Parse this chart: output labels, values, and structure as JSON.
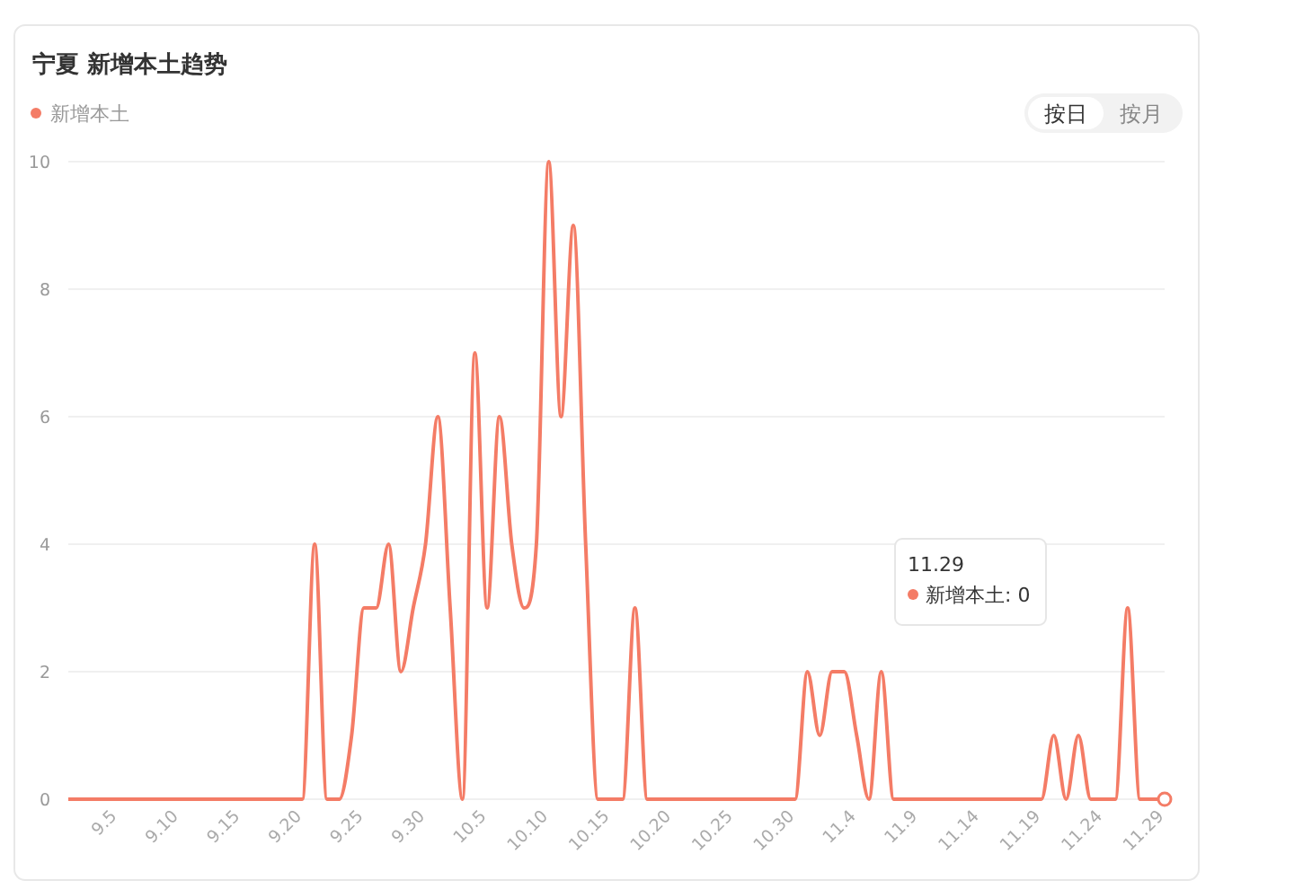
{
  "chart_data": {
    "type": "line",
    "title": "宁夏 新增本土趋势",
    "legend": "top left",
    "grid": "y",
    "marker": "none",
    "ylim": [
      0,
      10
    ],
    "yticks": [
      0,
      2,
      4,
      6,
      8,
      10
    ],
    "categories": [
      null,
      null,
      null,
      null,
      "9.5",
      null,
      null,
      null,
      null,
      "9.10",
      null,
      null,
      null,
      null,
      "9.15",
      null,
      null,
      null,
      null,
      "9.20",
      null,
      null,
      null,
      null,
      "9.25",
      null,
      null,
      null,
      null,
      "9.30",
      null,
      null,
      null,
      null,
      "10.5",
      null,
      null,
      null,
      null,
      "10.10",
      null,
      null,
      null,
      null,
      "10.15",
      null,
      null,
      null,
      null,
      "10.20",
      null,
      null,
      null,
      null,
      "10.25",
      null,
      null,
      null,
      null,
      "10.30",
      null,
      null,
      null,
      null,
      "11.4",
      null,
      null,
      null,
      null,
      "11.9",
      null,
      null,
      null,
      null,
      "11.14",
      null,
      null,
      null,
      null,
      "11.19",
      null,
      null,
      null,
      null,
      "11.24",
      null,
      null,
      null,
      null,
      "11.29"
    ],
    "series": [
      {
        "name": "新增本土",
        "color": "#f47c66",
        "values": [
          0,
          0,
          0,
          0,
          0,
          0,
          0,
          0,
          0,
          0,
          0,
          0,
          0,
          0,
          0,
          0,
          0,
          0,
          0,
          0,
          4,
          0,
          0,
          1,
          3,
          3,
          4,
          2,
          3,
          4,
          6,
          3,
          0,
          7,
          3,
          6,
          4,
          3,
          4,
          10,
          6,
          9,
          4,
          0,
          0,
          0,
          3,
          0,
          0,
          0,
          0,
          0,
          0,
          0,
          0,
          0,
          0,
          0,
          0,
          0,
          2,
          1,
          2,
          2,
          1,
          0,
          2,
          0,
          0,
          0,
          0,
          0,
          0,
          0,
          0,
          0,
          0,
          0,
          0,
          0,
          1,
          0,
          1,
          0,
          0,
          0,
          3,
          0,
          0,
          0
        ]
      }
    ],
    "annotations": [
      "按日",
      "按月",
      "11.29",
      "新增本土: 0"
    ]
  }
}
